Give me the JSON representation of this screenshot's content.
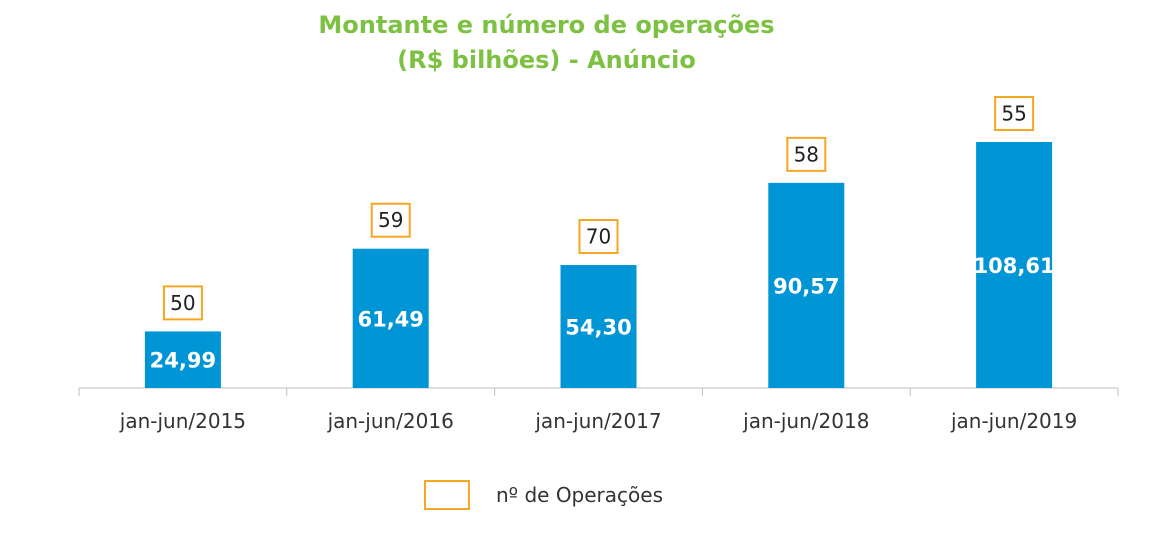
{
  "chart_data": {
    "type": "bar",
    "title_line1": "Montante e número de operações",
    "title_line2": "(R$ bilhões) - Anúncio",
    "categories": [
      "jan-jun/2015",
      "jan-jun/2016",
      "jan-jun/2017",
      "jan-jun/2018",
      "jan-jun/2019"
    ],
    "series": [
      {
        "values": [
          24.99,
          61.49,
          54.3,
          90.57,
          108.61
        ],
        "labels": [
          "24,99",
          "61,49",
          "54,30",
          "90,57",
          "108,61"
        ],
        "color": "#0096d6"
      },
      {
        "name": "nº de Operações",
        "values": [
          50,
          59,
          70,
          58,
          55
        ],
        "labels": [
          "50",
          "59",
          "70",
          "58",
          "55"
        ],
        "color": "#f5a623",
        "style": "boxed-label"
      }
    ],
    "ylim": [
      0,
      108.61
    ],
    "grid": false,
    "legend": "bottom-center"
  }
}
